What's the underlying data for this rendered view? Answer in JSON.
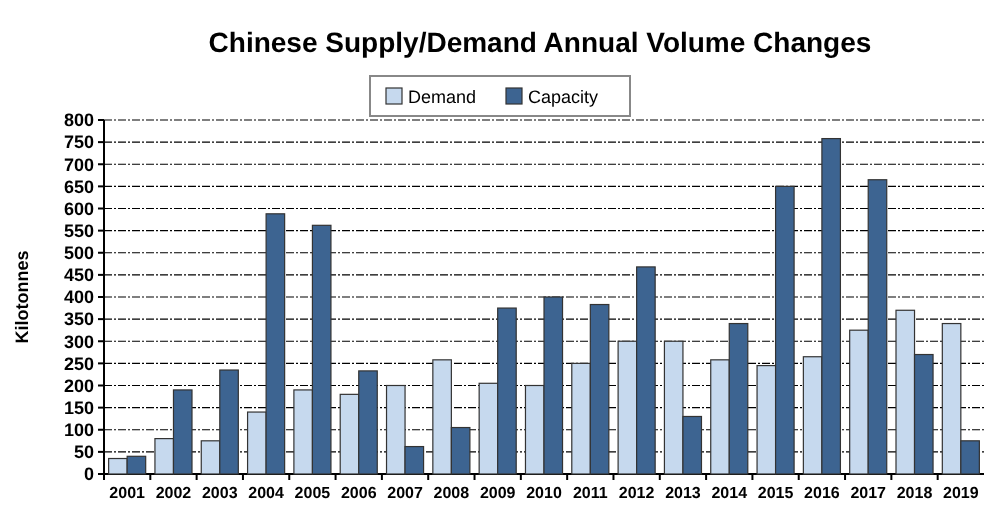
{
  "chart_data": {
    "type": "bar",
    "title": "Chinese Supply/Demand Annual Volume Changes",
    "ylabel": "Kilotonnes",
    "categories": [
      "2001",
      "2002",
      "2003",
      "2004",
      "2005",
      "2006",
      "2007",
      "2008",
      "2009",
      "2010",
      "2011",
      "2012",
      "2013",
      "2014",
      "2015",
      "2016",
      "2017",
      "2018",
      "2019"
    ],
    "series": [
      {
        "name": "Demand",
        "color": "#c6d9ee",
        "values": [
          35,
          80,
          75,
          140,
          190,
          180,
          200,
          258,
          205,
          200,
          250,
          300,
          300,
          258,
          245,
          265,
          325,
          370,
          340
        ]
      },
      {
        "name": "Capacity",
        "color": "#3d6491",
        "values": [
          40,
          190,
          235,
          588,
          562,
          233,
          62,
          105,
          375,
          400,
          383,
          468,
          130,
          340,
          650,
          758,
          665,
          270,
          75
        ]
      }
    ],
    "ylim": [
      0,
      800
    ],
    "yticks": [
      0,
      50,
      100,
      150,
      200,
      250,
      300,
      350,
      400,
      450,
      500,
      550,
      600,
      650,
      700,
      750,
      800
    ],
    "grid": "y",
    "legend": "top"
  }
}
